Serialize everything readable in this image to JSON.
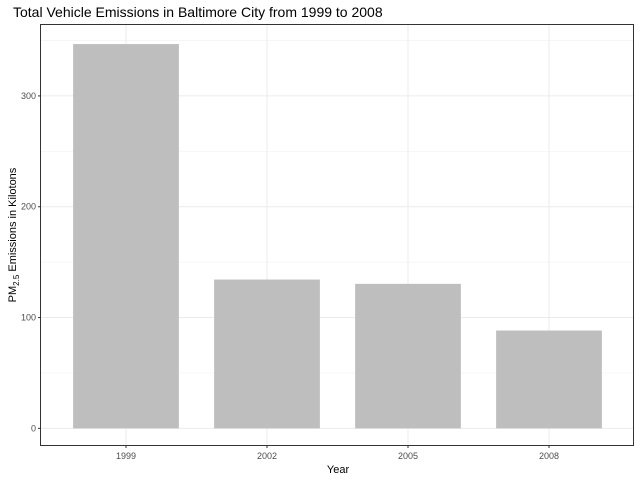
{
  "chart_data": {
    "type": "bar",
    "title": "Total Vehicle Emissions in Baltimore City from 1999 to 2008",
    "xlabel": "Year",
    "ylabel": {
      "prefix": "PM",
      "subscript": "2.5",
      "suffix": " Emissions in Kilotons"
    },
    "categories": [
      "1999",
      "2002",
      "2005",
      "2008"
    ],
    "values": [
      346.8,
      134.3,
      130.4,
      88.3
    ],
    "ylim": [
      -15,
      364
    ],
    "yticks": [
      0,
      100,
      200,
      300
    ],
    "grid": true,
    "legend": "none",
    "bar_color": "#bebebe"
  }
}
